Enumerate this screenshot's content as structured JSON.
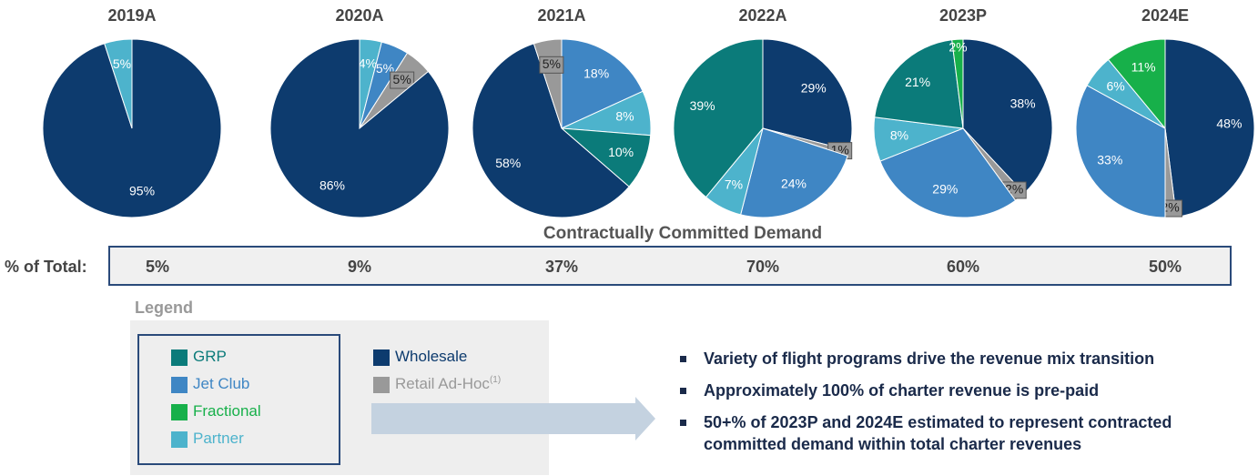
{
  "chart_data": [
    {
      "type": "pie",
      "title": "2019A",
      "categories": [
        "Wholesale",
        "Partner"
      ],
      "values": [
        95,
        5
      ],
      "value_labels": [
        "95%",
        "5%"
      ]
    },
    {
      "type": "pie",
      "title": "2020A",
      "categories": [
        "Partner",
        "Jet Club",
        "Retail Ad-Hoc",
        "Wholesale"
      ],
      "values": [
        4,
        5,
        5,
        86
      ],
      "value_labels": [
        "4%",
        "5%",
        "5%",
        "86%"
      ]
    },
    {
      "type": "pie",
      "title": "2021A",
      "categories": [
        "Jet Club",
        "Partner",
        "GRP",
        "Wholesale",
        "Retail Ad-Hoc"
      ],
      "values": [
        18,
        8,
        10,
        58,
        5
      ],
      "value_labels": [
        "18%",
        "8%",
        "10%",
        "58%",
        "5%"
      ]
    },
    {
      "type": "pie",
      "title": "2022A",
      "categories": [
        "Wholesale",
        "Retail Ad-Hoc",
        "Jet Club",
        "Partner",
        "GRP"
      ],
      "values": [
        29,
        1,
        24,
        7,
        39
      ],
      "value_labels": [
        "29%",
        "1%",
        "24%",
        "7%",
        "39%"
      ]
    },
    {
      "type": "pie",
      "title": "2023P",
      "categories": [
        "Wholesale",
        "Retail Ad-Hoc",
        "Jet Club",
        "Partner",
        "GRP",
        "Fractional"
      ],
      "values": [
        38,
        2,
        29,
        8,
        21,
        2
      ],
      "value_labels": [
        "38%",
        "2%",
        "29%",
        "8%",
        "21%",
        "2%"
      ]
    },
    {
      "type": "pie",
      "title": "2024E",
      "categories": [
        "Wholesale",
        "Retail Ad-Hoc",
        "Jet Club",
        "Partner",
        "Fractional"
      ],
      "values": [
        48,
        2,
        33,
        6,
        11
      ],
      "value_labels": [
        "48%",
        "2%",
        "33%",
        "6%",
        "11%"
      ]
    }
  ],
  "demand": {
    "title": "Contractually Committed Demand",
    "label": "% of Total:",
    "cells": [
      "5%",
      "9%",
      "37%",
      "70%",
      "60%",
      "50%"
    ]
  },
  "legend": {
    "title": "Legend",
    "items": [
      {
        "name": "GRP",
        "color": "#0b7b7a"
      },
      {
        "name": "Jet Club",
        "color": "#3f86c4"
      },
      {
        "name": "Fractional",
        "color": "#17b04a"
      },
      {
        "name": "Partner",
        "color": "#4db3cc"
      },
      {
        "name": "Wholesale",
        "color": "#0d3b6e"
      },
      {
        "name": "Retail Ad-Hoc",
        "note": "(1)",
        "color": "#999999"
      }
    ]
  },
  "bullets": [
    "Variety of flight programs drive the revenue mix transition",
    "Approximately 100% of charter revenue is pre-paid",
    "50+% of 2023P and 2024E estimated to represent contracted committed demand within total charter revenues"
  ]
}
